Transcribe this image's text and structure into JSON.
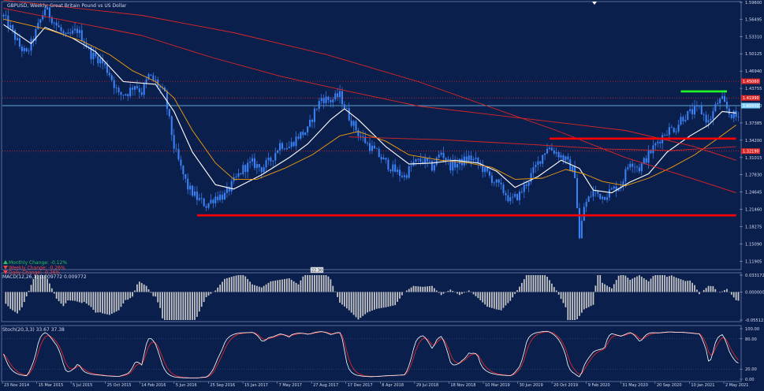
{
  "window": {
    "title": "GBPUSD, Weekly: Great Britain Pound vs US Dollar"
  },
  "stats": [
    {
      "text": "Monthly Change: -0.12%",
      "color": "#22c55e",
      "arrow": "up"
    },
    {
      "text": "Weekly Change: -0.26%",
      "color": "#ef4444",
      "arrow": "down"
    },
    {
      "text": "Daily Change: -0.26%",
      "color": "#ef4444",
      "arrow": "down"
    }
  ],
  "badge": "22.30",
  "colors": {
    "background": "#0b1f4d",
    "candle": "#3b82f6",
    "ma_fast": "#ffffff",
    "ma_mid": "#f59e0b",
    "ma_slow": "#dc2626",
    "support": "#ff0000",
    "resistance": "#22ff22",
    "grid": "#2a3f75",
    "macd_hist": "#c8c8c8",
    "stoch_main": "#ffffff",
    "stoch_signal": "#dc2626"
  },
  "chart_data": [
    {
      "type": "candlestick",
      "pane": "price",
      "title": "GBPUSD, Weekly: Great Britain Pound vs US Dollar",
      "y_ticks": [
        "1.59600",
        "1.56495",
        "1.53310",
        "1.50125",
        "1.46940",
        "1.43755",
        "1.40570",
        "1.37385",
        "1.34200",
        "1.31015",
        "1.27830",
        "1.24645",
        "1.21460",
        "1.18275",
        "1.15090",
        "1.11905"
      ],
      "ylim": [
        1.105,
        1.596
      ],
      "x_ticks": [
        "23 Nov 2014",
        "15 Mar 2015",
        "5 Jul 2015",
        "25 Oct 2015",
        "14 Feb 2016",
        "5 Jun 2016",
        "25 Sep 2016",
        "15 Jan 2017",
        "7 May 2017",
        "27 Aug 2017",
        "17 Dec 2017",
        "8 Apr 2018",
        "29 Jul 2018",
        "18 Nov 2018",
        "10 Mar 2019",
        "30 Jun 2019",
        "20 Oct 2019",
        "9 Feb 2020",
        "31 May 2020",
        "20 Sep 2020",
        "10 Jan 2021",
        "2 May 2021"
      ],
      "price_path": [
        [
          0,
          1.57
        ],
        [
          3,
          1.548
        ],
        [
          7,
          1.515
        ],
        [
          10,
          1.5
        ],
        [
          13,
          1.53
        ],
        [
          18,
          1.585
        ],
        [
          22,
          1.56
        ],
        [
          27,
          1.53
        ],
        [
          32,
          1.545
        ],
        [
          35,
          1.525
        ],
        [
          38,
          1.5
        ],
        [
          42,
          1.49
        ],
        [
          46,
          1.465
        ],
        [
          50,
          1.425
        ],
        [
          54,
          1.43
        ],
        [
          57,
          1.445
        ],
        [
          60,
          1.43
        ],
        [
          63,
          1.46
        ],
        [
          66,
          1.45
        ],
        [
          70,
          1.425
        ],
        [
          74,
          1.33
        ],
        [
          77,
          1.29
        ],
        [
          80,
          1.255
        ],
        [
          84,
          1.235
        ],
        [
          88,
          1.222
        ],
        [
          92,
          1.238
        ],
        [
          96,
          1.24
        ],
        [
          100,
          1.265
        ],
        [
          104,
          1.29
        ],
        [
          108,
          1.3
        ],
        [
          112,
          1.29
        ],
        [
          116,
          1.305
        ],
        [
          120,
          1.335
        ],
        [
          124,
          1.33
        ],
        [
          128,
          1.35
        ],
        [
          132,
          1.36
        ],
        [
          135,
          1.395
        ],
        [
          138,
          1.42
        ],
        [
          142,
          1.415
        ],
        [
          146,
          1.425
        ],
        [
          148,
          1.405
        ],
        [
          150,
          1.385
        ],
        [
          154,
          1.355
        ],
        [
          158,
          1.335
        ],
        [
          162,
          1.318
        ],
        [
          166,
          1.3
        ],
        [
          170,
          1.285
        ],
        [
          174,
          1.275
        ],
        [
          178,
          1.3
        ],
        [
          182,
          1.305
        ],
        [
          186,
          1.292
        ],
        [
          190,
          1.32
        ],
        [
          194,
          1.295
        ],
        [
          198,
          1.3
        ],
        [
          202,
          1.31
        ],
        [
          206,
          1.3
        ],
        [
          210,
          1.28
        ],
        [
          214,
          1.262
        ],
        [
          218,
          1.243
        ],
        [
          220,
          1.23
        ],
        [
          224,
          1.242
        ],
        [
          228,
          1.27
        ],
        [
          232,
          1.3
        ],
        [
          236,
          1.33
        ],
        [
          240,
          1.32
        ],
        [
          244,
          1.305
        ],
        [
          248,
          1.28
        ],
        [
          250,
          1.16
        ],
        [
          252,
          1.22
        ],
        [
          256,
          1.248
        ],
        [
          260,
          1.238
        ],
        [
          264,
          1.25
        ],
        [
          268,
          1.26
        ],
        [
          272,
          1.305
        ],
        [
          276,
          1.29
        ],
        [
          280,
          1.315
        ],
        [
          284,
          1.34
        ],
        [
          288,
          1.36
        ],
        [
          292,
          1.365
        ],
        [
          294,
          1.382
        ],
        [
          298,
          1.392
        ],
        [
          302,
          1.4
        ],
        [
          306,
          1.375
        ],
        [
          310,
          1.412
        ],
        [
          312,
          1.415
        ],
        [
          315,
          1.392
        ],
        [
          318,
          1.385
        ]
      ],
      "n_weeks": 320,
      "moving_averages": [
        {
          "role": "ma_fast",
          "points": [
            [
              0,
              1.555
            ],
            [
              12,
              1.52
            ],
            [
              18,
              1.55
            ],
            [
              30,
              1.53
            ],
            [
              40,
              1.505
            ],
            [
              52,
              1.45
            ],
            [
              66,
              1.445
            ],
            [
              74,
              1.395
            ],
            [
              82,
              1.32
            ],
            [
              92,
              1.26
            ],
            [
              100,
              1.252
            ],
            [
              112,
              1.278
            ],
            [
              124,
              1.31
            ],
            [
              132,
              1.335
            ],
            [
              142,
              1.38
            ],
            [
              148,
              1.4
            ],
            [
              154,
              1.38
            ],
            [
              166,
              1.33
            ],
            [
              176,
              1.298
            ],
            [
              186,
              1.3
            ],
            [
              196,
              1.305
            ],
            [
              206,
              1.3
            ],
            [
              214,
              1.285
            ],
            [
              222,
              1.255
            ],
            [
              232,
              1.275
            ],
            [
              242,
              1.305
            ],
            [
              250,
              1.29
            ],
            [
              256,
              1.25
            ],
            [
              264,
              1.245
            ],
            [
              272,
              1.265
            ],
            [
              280,
              1.28
            ],
            [
              288,
              1.32
            ],
            [
              298,
              1.35
            ],
            [
              306,
              1.37
            ],
            [
              312,
              1.395
            ],
            [
              318,
              1.392
            ]
          ]
        },
        {
          "role": "ma_mid",
          "points": [
            [
              0,
              1.565
            ],
            [
              20,
              1.545
            ],
            [
              34,
              1.525
            ],
            [
              46,
              1.5
            ],
            [
              56,
              1.47
            ],
            [
              66,
              1.45
            ],
            [
              74,
              1.42
            ],
            [
              82,
              1.36
            ],
            [
              92,
              1.3
            ],
            [
              100,
              1.27
            ],
            [
              110,
              1.27
            ],
            [
              122,
              1.29
            ],
            [
              134,
              1.315
            ],
            [
              146,
              1.35
            ],
            [
              154,
              1.358
            ],
            [
              166,
              1.34
            ],
            [
              176,
              1.315
            ],
            [
              190,
              1.305
            ],
            [
              202,
              1.3
            ],
            [
              212,
              1.292
            ],
            [
              222,
              1.27
            ],
            [
              234,
              1.272
            ],
            [
              244,
              1.288
            ],
            [
              252,
              1.28
            ],
            [
              260,
              1.266
            ],
            [
              270,
              1.258
            ],
            [
              280,
              1.272
            ],
            [
              290,
              1.292
            ],
            [
              300,
              1.315
            ],
            [
              310,
              1.345
            ],
            [
              318,
              1.37
            ]
          ]
        },
        {
          "role": "ma_slow",
          "points": [
            [
              0,
              1.585
            ],
            [
              30,
              1.56
            ],
            [
              60,
              1.535
            ],
            [
              90,
              1.495
            ],
            [
              120,
              1.46
            ],
            [
              150,
              1.432
            ],
            [
              180,
              1.405
            ],
            [
              210,
              1.39
            ],
            [
              240,
              1.375
            ],
            [
              270,
              1.36
            ],
            [
              300,
              1.33
            ],
            [
              318,
              1.305
            ]
          ]
        },
        {
          "role": "ma_slow",
          "points": [
            [
              0,
              1.6
            ],
            [
              60,
              1.572
            ],
            [
              100,
              1.54
            ],
            [
              140,
              1.5
            ],
            [
              180,
              1.45
            ],
            [
              210,
              1.405
            ],
            [
              240,
              1.36
            ],
            [
              270,
              1.31
            ],
            [
              300,
              1.27
            ],
            [
              318,
              1.245
            ]
          ]
        },
        {
          "role": "ma_slow",
          "points": [
            [
              150,
              1.348
            ],
            [
              190,
              1.343
            ],
            [
              230,
              1.334
            ],
            [
              260,
              1.326
            ],
            [
              290,
              1.323
            ],
            [
              318,
              1.33
            ]
          ]
        }
      ],
      "horizontal_lines": [
        {
          "label": "1.45060",
          "value": 1.4506,
          "color": "ma_slow",
          "style": "dotted",
          "tag": true
        },
        {
          "label": "1.41990",
          "value": 1.4199,
          "color": "ma_slow",
          "style": "dotted",
          "tag": true
        },
        {
          "label": "1.40570",
          "value": 1.4057,
          "color": "#7dd3fc",
          "style": "solid",
          "tag": true
        },
        {
          "label": "1.32190",
          "value": 1.3219,
          "color": "ma_slow",
          "style": "dotted",
          "tag": true
        }
      ],
      "annotations": [
        {
          "type": "support",
          "y": 1.2035,
          "x0": 84,
          "x1": 318,
          "color": "support"
        },
        {
          "type": "support",
          "y": 1.345,
          "x0": 237,
          "x1": 318,
          "color": "support"
        },
        {
          "type": "resistance",
          "y": 1.432,
          "x0": 294,
          "x1": 314,
          "color": "resistance"
        }
      ]
    },
    {
      "type": "histogram",
      "pane": "macd",
      "title": "MACD(12,26,1) 0.009772 0.009772",
      "y_ticks": [
        "0.033172",
        "0.000000",
        "-0.055123"
      ],
      "ylim": [
        -0.055123,
        0.033172
      ]
    },
    {
      "type": "line",
      "pane": "stoch",
      "title": "Stoch(20,3,3) 33.67 37.38",
      "y_ticks": [
        "100.00",
        "80.00",
        "20.00",
        "0.00"
      ],
      "ylim": [
        0,
        100
      ],
      "levels": [
        80,
        20
      ]
    }
  ]
}
